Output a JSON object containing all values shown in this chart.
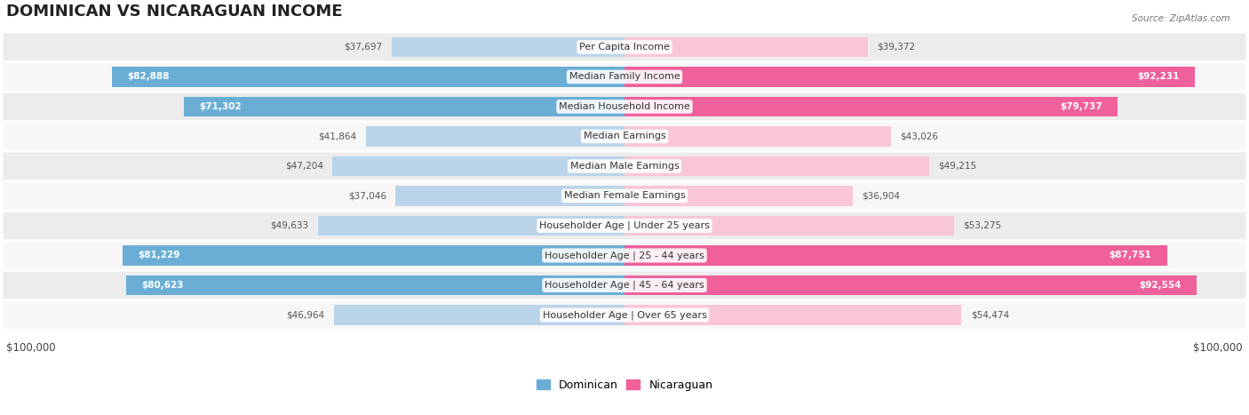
{
  "title": "DOMINICAN VS NICARAGUAN INCOME",
  "source": "Source: ZipAtlas.com",
  "max_value": 100000,
  "categories": [
    "Per Capita Income",
    "Median Family Income",
    "Median Household Income",
    "Median Earnings",
    "Median Male Earnings",
    "Median Female Earnings",
    "Householder Age | Under 25 years",
    "Householder Age | 25 - 44 years",
    "Householder Age | 45 - 64 years",
    "Householder Age | Over 65 years"
  ],
  "dominican_values": [
    37697,
    82888,
    71302,
    41864,
    47204,
    37046,
    49633,
    81229,
    80623,
    46964
  ],
  "nicaraguan_values": [
    39372,
    92231,
    79737,
    43026,
    49215,
    36904,
    53275,
    87751,
    92554,
    54474
  ],
  "dominican_color_light": "#bad4ea",
  "dominican_color_dark": "#6aaed6",
  "nicaraguan_color_light": "#f9c6d8",
  "nicaraguan_color_dark": "#f0609a",
  "dominican_label": "Dominican",
  "nicaraguan_label": "Nicaraguan",
  "dom_threshold": 60000,
  "nic_threshold": 60000,
  "title_fontsize": 13,
  "label_fontsize": 8,
  "value_fontsize": 7.5,
  "legend_fontsize": 9,
  "row_bg_even": "#ececec",
  "row_bg_odd": "#f7f7f7",
  "xlabel_left": "$100,000",
  "xlabel_right": "$100,000"
}
